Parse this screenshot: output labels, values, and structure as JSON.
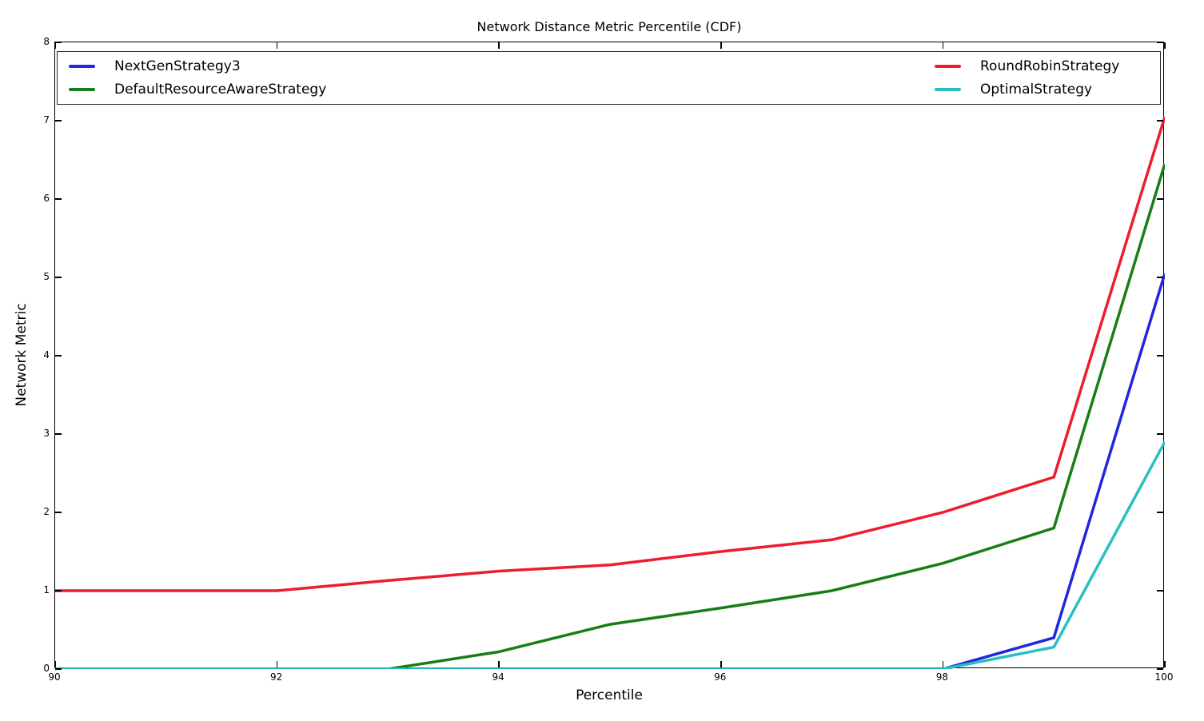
{
  "chart_data": {
    "type": "line",
    "title": "Network Distance Metric Percentile (CDF)",
    "xlabel": "Percentile",
    "ylabel": "Network Metric",
    "xlim": [
      90,
      100
    ],
    "ylim": [
      0,
      8
    ],
    "x_ticks": [
      90,
      92,
      94,
      96,
      98,
      100
    ],
    "y_ticks": [
      0,
      1,
      2,
      3,
      4,
      5,
      6,
      7,
      8
    ],
    "grid": false,
    "legend_position": "top-expanded-2-columns",
    "line_width": 3.5,
    "x": [
      90,
      91,
      92,
      93,
      94,
      95,
      96,
      97,
      98,
      99,
      100
    ],
    "series": [
      {
        "name": "NextGenStrategy3",
        "color": "#2127dd",
        "values": [
          0,
          0,
          0,
          0,
          0,
          0,
          0,
          0,
          0,
          0.4,
          5.05
        ]
      },
      {
        "name": "DefaultResourceAwareStrategy",
        "color": "#187e18",
        "values": [
          0,
          0,
          0,
          0,
          0.22,
          0.57,
          0.78,
          1.0,
          1.35,
          1.8,
          6.45
        ]
      },
      {
        "name": "RoundRobinStrategy",
        "color": "#ee1c2d",
        "values": [
          1.0,
          1.0,
          1.0,
          1.13,
          1.25,
          1.33,
          1.5,
          1.65,
          2.0,
          2.45,
          7.05
        ]
      },
      {
        "name": "OptimalStrategy",
        "color": "#2abfc0",
        "values": [
          0,
          0,
          0,
          0,
          0,
          0,
          0,
          0,
          0,
          0.28,
          2.9
        ]
      }
    ],
    "legend_columns": [
      [
        "NextGenStrategy3",
        "DefaultResourceAwareStrategy"
      ],
      [
        "RoundRobinStrategy",
        "OptimalStrategy"
      ]
    ]
  }
}
